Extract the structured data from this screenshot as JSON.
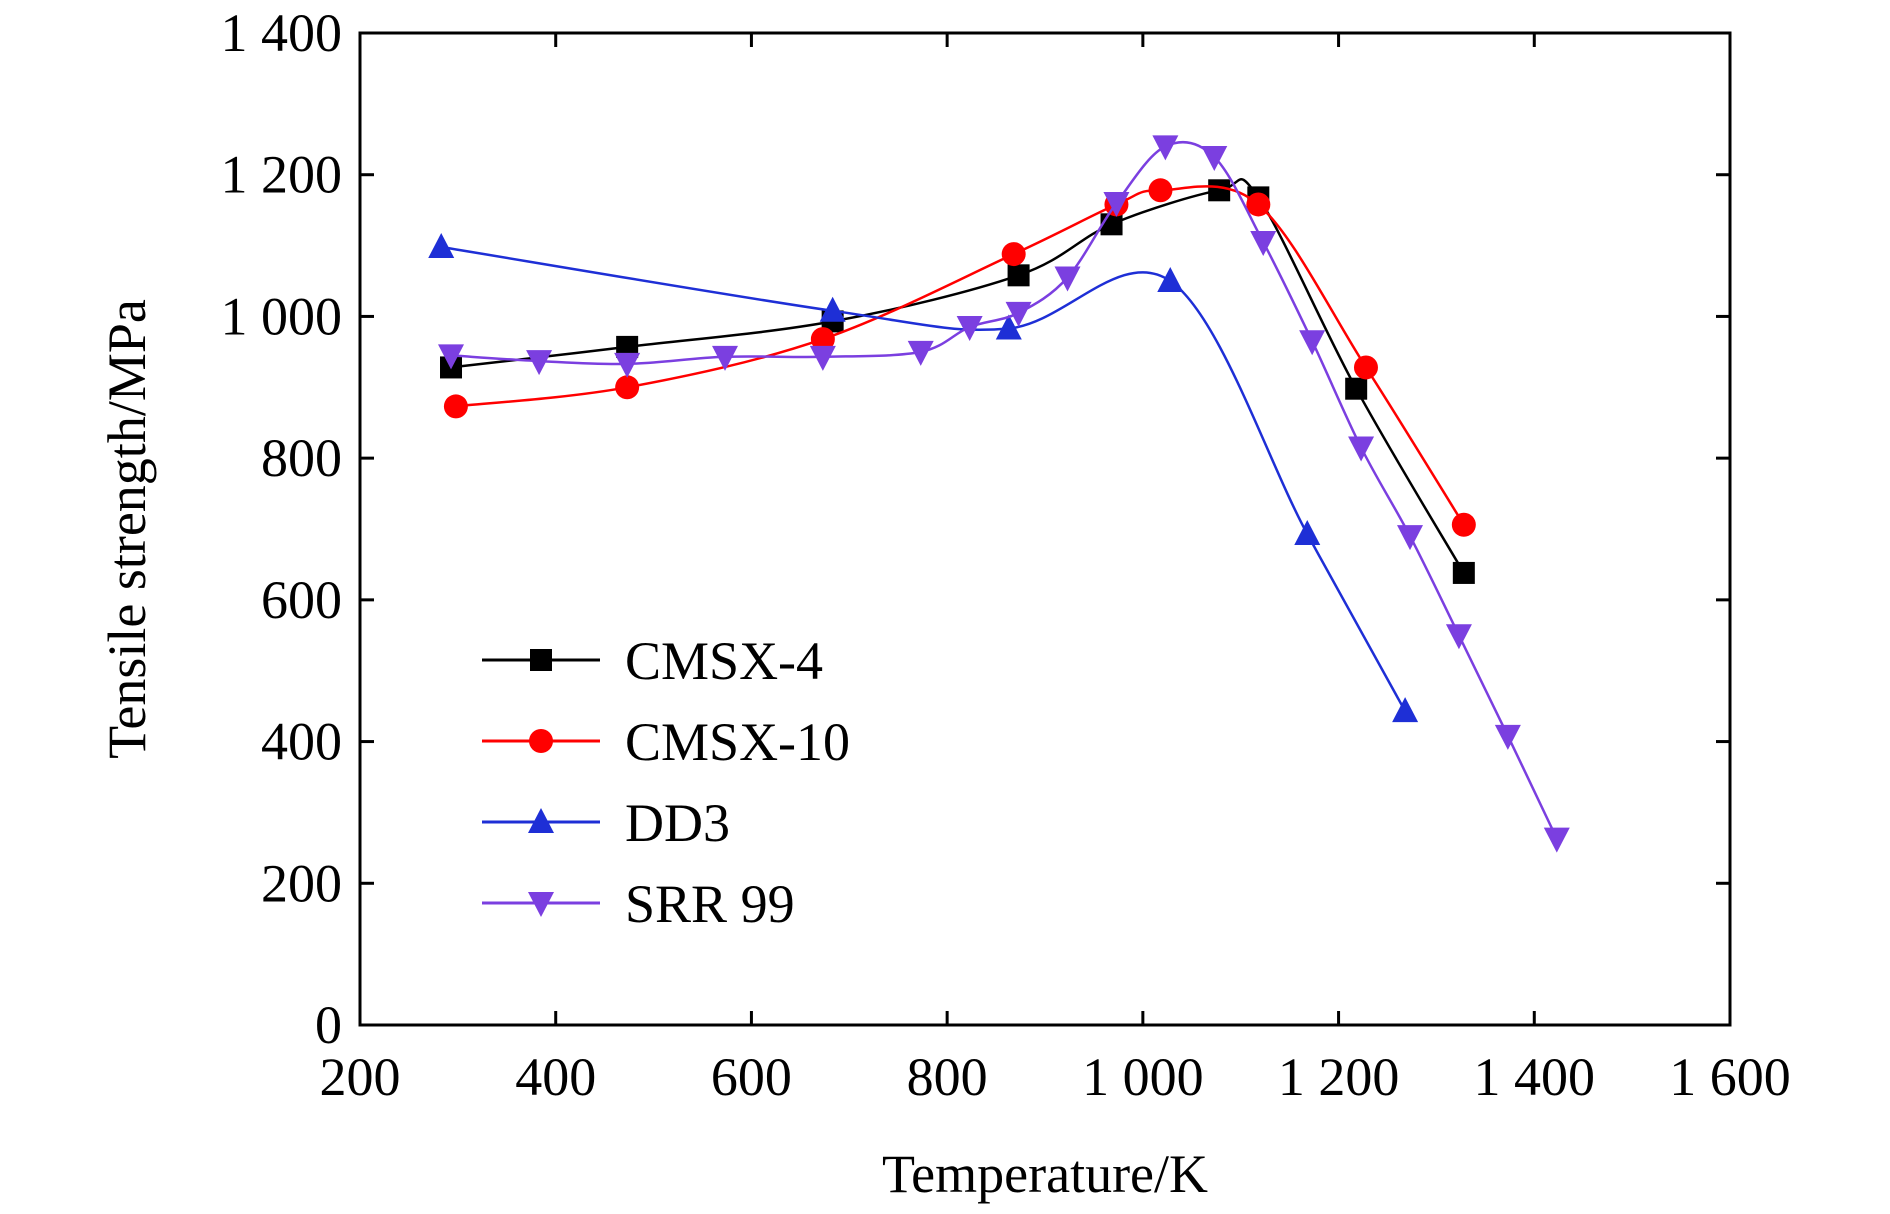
{
  "chart_data": {
    "type": "line",
    "title": "",
    "xlabel": "Temperature/K",
    "ylabel": "Tensile strength/MPa",
    "xlim": [
      200,
      1600
    ],
    "ylim": [
      0,
      1400
    ],
    "xticks": [
      200,
      400,
      600,
      800,
      1000,
      1200,
      1400,
      1600
    ],
    "xtick_labels": [
      "200",
      "400",
      "600",
      "800",
      "1 000",
      "1 200",
      "1 400",
      "1 600"
    ],
    "yticks": [
      0,
      200,
      400,
      600,
      800,
      1000,
      1200,
      1400
    ],
    "ytick_labels": [
      "0",
      "200",
      "400",
      "600",
      "800",
      "1 000",
      "1 200",
      "1 400"
    ],
    "grid": false,
    "legend_position": "bottom-left",
    "series": [
      {
        "name": "CMSX-4",
        "color": "#000000",
        "marker": "square",
        "x": [
          293,
          473,
          683,
          873,
          968,
          1078,
          1118,
          1218,
          1328
        ],
        "y": [
          928,
          957,
          993,
          1058,
          1130,
          1178,
          1168,
          898,
          638
        ]
      },
      {
        "name": "CMSX-10",
        "color": "#ff0000",
        "marker": "circle",
        "x": [
          298,
          473,
          673,
          868,
          973,
          1018,
          1118,
          1228,
          1328
        ],
        "y": [
          873,
          900,
          968,
          1088,
          1158,
          1178,
          1158,
          928,
          706
        ]
      },
      {
        "name": "DD3",
        "color": "#1e2fd6",
        "marker": "triangle-up",
        "x": [
          283,
          683,
          863,
          1028,
          1168,
          1268
        ],
        "y": [
          1098,
          1008,
          983,
          1050,
          693,
          443
        ]
      },
      {
        "name": "SRR 99",
        "color": "#7b3fe0",
        "marker": "triangle-down",
        "x": [
          293,
          383,
          473,
          573,
          673,
          773,
          823,
          873,
          923,
          973,
          1023,
          1073,
          1123,
          1173,
          1223,
          1273,
          1323,
          1373,
          1423
        ],
        "y": [
          945,
          937,
          933,
          943,
          943,
          950,
          985,
          1005,
          1055,
          1160,
          1240,
          1225,
          1105,
          965,
          815,
          690,
          550,
          408,
          263
        ]
      }
    ]
  }
}
